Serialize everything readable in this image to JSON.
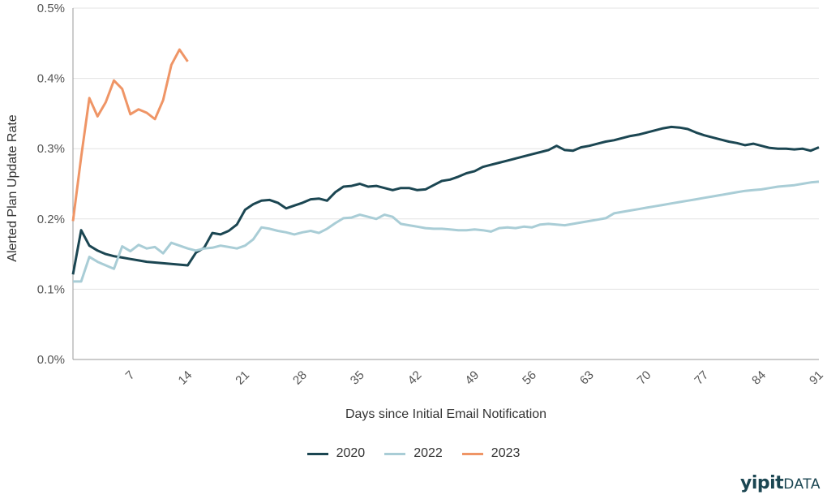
{
  "chart_data": {
    "type": "line",
    "xlabel": "Days since Initial Email Notification",
    "ylabel": "Alerted Plan Update Rate",
    "xlim": [
      0,
      91
    ],
    "ylim": [
      0,
      0.5
    ],
    "x_ticks": [
      7,
      14,
      21,
      28,
      35,
      42,
      49,
      56,
      63,
      70,
      77,
      84,
      91
    ],
    "y_ticks": [
      "0.0%",
      "0.1%",
      "0.2%",
      "0.3%",
      "0.4%",
      "0.5%"
    ],
    "y_tick_values": [
      0,
      0.1,
      0.2,
      0.3,
      0.4,
      0.5
    ],
    "grid": "horizontal",
    "legend_position": "bottom",
    "series": [
      {
        "name": "2020",
        "color": "#1b4652",
        "x": [
          0,
          1,
          2,
          3,
          4,
          5,
          6,
          7,
          8,
          9,
          10,
          11,
          12,
          13,
          14,
          15,
          16,
          17,
          18,
          19,
          20,
          21,
          22,
          23,
          24,
          25,
          26,
          27,
          28,
          29,
          30,
          31,
          32,
          33,
          34,
          35,
          36,
          37,
          38,
          39,
          40,
          41,
          42,
          43,
          44,
          45,
          46,
          47,
          48,
          49,
          50,
          51,
          52,
          53,
          54,
          55,
          56,
          57,
          58,
          59,
          60,
          61,
          62,
          63,
          64,
          65,
          66,
          67,
          68,
          69,
          70,
          71,
          72,
          73,
          74,
          75,
          76,
          77,
          78,
          79,
          80,
          81,
          82,
          83,
          84,
          85,
          86,
          87,
          88,
          89,
          90,
          91
        ],
        "values": [
          0.121,
          0.184,
          0.162,
          0.155,
          0.15,
          0.147,
          0.145,
          0.143,
          0.141,
          0.139,
          0.138,
          0.137,
          0.136,
          0.135,
          0.134,
          0.152,
          0.159,
          0.18,
          0.178,
          0.183,
          0.192,
          0.213,
          0.221,
          0.226,
          0.227,
          0.223,
          0.215,
          0.219,
          0.223,
          0.228,
          0.229,
          0.226,
          0.238,
          0.246,
          0.247,
          0.25,
          0.246,
          0.247,
          0.244,
          0.241,
          0.244,
          0.244,
          0.241,
          0.242,
          0.248,
          0.254,
          0.256,
          0.26,
          0.265,
          0.268,
          0.274,
          0.277,
          0.28,
          0.283,
          0.286,
          0.289,
          0.292,
          0.295,
          0.298,
          0.304,
          0.298,
          0.297,
          0.302,
          0.304,
          0.307,
          0.31,
          0.312,
          0.315,
          0.318,
          0.32,
          0.323,
          0.326,
          0.329,
          0.331,
          0.33,
          0.328,
          0.323,
          0.319,
          0.316,
          0.313,
          0.31,
          0.308,
          0.305,
          0.307,
          0.304,
          0.301,
          0.3,
          0.3,
          0.299,
          0.3,
          0.297,
          0.302
        ]
      },
      {
        "name": "2022",
        "color": "#a9cdd6",
        "x": [
          0,
          1,
          2,
          3,
          4,
          5,
          6,
          7,
          8,
          9,
          10,
          11,
          12,
          13,
          14,
          15,
          16,
          17,
          18,
          19,
          20,
          21,
          22,
          23,
          24,
          25,
          26,
          27,
          28,
          29,
          30,
          31,
          32,
          33,
          34,
          35,
          36,
          37,
          38,
          39,
          40,
          41,
          42,
          43,
          44,
          45,
          46,
          47,
          48,
          49,
          50,
          51,
          52,
          53,
          54,
          55,
          56,
          57,
          58,
          59,
          60,
          61,
          62,
          63,
          64,
          65,
          66,
          67,
          68,
          69,
          70,
          71,
          72,
          73,
          74,
          75,
          76,
          77,
          78,
          79,
          80,
          81,
          82,
          83,
          84,
          85,
          86,
          87,
          88,
          89,
          90,
          91
        ],
        "values": [
          0.111,
          0.111,
          0.146,
          0.139,
          0.134,
          0.129,
          0.161,
          0.154,
          0.163,
          0.158,
          0.16,
          0.151,
          0.166,
          0.162,
          0.158,
          0.155,
          0.158,
          0.159,
          0.162,
          0.16,
          0.158,
          0.162,
          0.171,
          0.188,
          0.186,
          0.183,
          0.181,
          0.178,
          0.181,
          0.183,
          0.18,
          0.186,
          0.194,
          0.201,
          0.202,
          0.206,
          0.203,
          0.2,
          0.206,
          0.203,
          0.193,
          0.191,
          0.189,
          0.187,
          0.186,
          0.186,
          0.185,
          0.184,
          0.184,
          0.185,
          0.184,
          0.182,
          0.187,
          0.188,
          0.187,
          0.189,
          0.188,
          0.192,
          0.193,
          0.192,
          0.191,
          0.193,
          0.195,
          0.197,
          0.199,
          0.201,
          0.208,
          0.21,
          0.212,
          0.214,
          0.216,
          0.218,
          0.22,
          0.222,
          0.224,
          0.226,
          0.228,
          0.23,
          0.232,
          0.234,
          0.236,
          0.238,
          0.24,
          0.241,
          0.242,
          0.244,
          0.246,
          0.247,
          0.248,
          0.25,
          0.252,
          0.253
        ]
      },
      {
        "name": "2023",
        "color": "#ef9566",
        "x": [
          0,
          1,
          2,
          3,
          4,
          5,
          6,
          7,
          8,
          9,
          10,
          11,
          12,
          13,
          14
        ],
        "values": [
          0.197,
          0.288,
          0.372,
          0.346,
          0.366,
          0.397,
          0.385,
          0.349,
          0.356,
          0.351,
          0.342,
          0.369,
          0.419,
          0.441,
          0.424
        ]
      }
    ]
  },
  "brand": {
    "name": "yipit",
    "suffix": "DATA"
  }
}
